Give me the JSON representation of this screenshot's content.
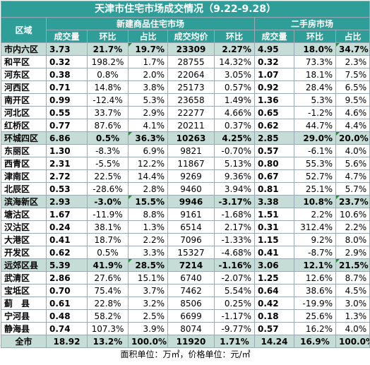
{
  "title": "天津市住宅市场成交情况（9.22-9.28）",
  "header": {
    "region": "区域",
    "new_market": "新建商品住宅市场",
    "second_market": "二手房市场",
    "cols": [
      "成交量",
      "环比",
      "占比",
      "成交均价",
      "环比",
      "成交量",
      "环比",
      "占比"
    ]
  },
  "rows": [
    {
      "name": "市内六区",
      "group": true,
      "v": [
        "3.73",
        "21.7%",
        "19.7%",
        "23309",
        "2.27%",
        "4.95",
        "18.0%",
        "34.7%"
      ]
    },
    {
      "name": "和平区",
      "v": [
        "0.32",
        "198.2%",
        "1.7%",
        "28755",
        "14.32%",
        "0.32",
        "73.3%",
        "2.3%"
      ]
    },
    {
      "name": "河东区",
      "v": [
        "0.38",
        "0.8%",
        "2.0%",
        "22064",
        "3.05%",
        "1.07",
        "18.1%",
        "7.5%"
      ]
    },
    {
      "name": "河西区",
      "v": [
        "0.71",
        "14.8%",
        "3.8%",
        "25173",
        "0.57%",
        "0.92",
        "28.4%",
        "6.5%"
      ]
    },
    {
      "name": "南开区",
      "v": [
        "0.99",
        "-12.4%",
        "5.3%",
        "23658",
        "1.49%",
        "1.36",
        "5.3%",
        "9.5%"
      ]
    },
    {
      "name": "河北区",
      "v": [
        "0.55",
        "33.7%",
        "2.9%",
        "22277",
        "4.66%",
        "0.65",
        "-1.2%",
        "4.6%"
      ]
    },
    {
      "name": "红桥区",
      "v": [
        "0.77",
        "87.6%",
        "4.1%",
        "20211",
        "0.37%",
        "0.62",
        "44.7%",
        "4.4%"
      ]
    },
    {
      "name": "环城四区",
      "group": true,
      "v": [
        "6.86",
        "0.5%",
        "36.3%",
        "10263",
        "4.25%",
        "2.85",
        "29.0%",
        "20.0%"
      ]
    },
    {
      "name": "东丽区",
      "v": [
        "1.30",
        "-8.3%",
        "6.9%",
        "9821",
        "-0.70%",
        "0.57",
        "-6.1%",
        "4.0%"
      ]
    },
    {
      "name": "西青区",
      "v": [
        "2.31",
        "-5.5%",
        "12.2%",
        "11867",
        "5.13%",
        "0.80",
        "55.3%",
        "5.6%"
      ]
    },
    {
      "name": "津南区",
      "v": [
        "2.72",
        "22.5%",
        "14.4%",
        "9269",
        "9.36%",
        "0.67",
        "52.7%",
        "4.7%"
      ]
    },
    {
      "name": "北辰区",
      "v": [
        "0.53",
        "-28.6%",
        "2.8%",
        "9460",
        "3.94%",
        "0.81",
        "25.1%",
        "5.7%"
      ]
    },
    {
      "name": "滨海新区",
      "group": true,
      "v": [
        "2.93",
        "-3.0%",
        "15.5%",
        "9946",
        "-3.17%",
        "3.38",
        "10.8%",
        "23.7%"
      ]
    },
    {
      "name": "塘沽区",
      "v": [
        "1.67",
        "-11.9%",
        "8.8%",
        "9161",
        "-1.68%",
        "1.51",
        "2.2%",
        "10.6%"
      ]
    },
    {
      "name": "汉沽区",
      "v": [
        "0.24",
        "38.1%",
        "1.3%",
        "6514",
        "2.17%",
        "0.31",
        "312.4%",
        "2.2%"
      ]
    },
    {
      "name": "大港区",
      "v": [
        "0.41",
        "18.7%",
        "2.2%",
        "7096",
        "-1.33%",
        "1.15",
        "9.2%",
        "8.0%"
      ]
    },
    {
      "name": "开发区",
      "v": [
        "0.62",
        "0.5%",
        "3.3%",
        "15327",
        "-4.68%",
        "0.41",
        "-8.7%",
        "2.9%"
      ]
    },
    {
      "name": "远郊区县",
      "group": true,
      "v": [
        "5.39",
        "41.9%",
        "28.5%",
        "7214",
        "-1.16%",
        "3.06",
        "12.1%",
        "21.5%"
      ]
    },
    {
      "name": "武清区",
      "v": [
        "2.86",
        "27.6%",
        "15.1%",
        "6740",
        "-2.07%",
        "1.25",
        "12.6%",
        "8.7%"
      ]
    },
    {
      "name": "宝坻区",
      "v": [
        "0.70",
        "75.4%",
        "3.7%",
        "7462",
        "5.54%",
        "0.64",
        "38.6%",
        "4.5%"
      ]
    },
    {
      "name": "蓟　县",
      "v": [
        "0.61",
        "22.8%",
        "3.2%",
        "8506",
        "0.25%",
        "0.42",
        "-19.9%",
        "3.0%"
      ]
    },
    {
      "name": "宁河县",
      "v": [
        "0.48",
        "58.2%",
        "2.5%",
        "6699",
        "-1.17%",
        "0.18",
        "25.6%",
        "1.3%"
      ]
    },
    {
      "name": "静海县",
      "v": [
        "0.74",
        "107.3%",
        "3.9%",
        "8074",
        "-9.77%",
        "0.57",
        "16.2%",
        "4.0%"
      ]
    }
  ],
  "total": {
    "name": "全市",
    "v": [
      "18.92",
      "13.2%",
      "100.0%",
      "11920",
      "1.71%",
      "14.24",
      "16.9%",
      "100.0%"
    ]
  },
  "footnote": "面积单位：万㎡，价格单位：元/㎡",
  "colors": {
    "header_bg": "#2f9e98",
    "group_bg": "#c6ddd7",
    "border": "#9aaab5",
    "cell_marker": "#2a8b3a"
  }
}
